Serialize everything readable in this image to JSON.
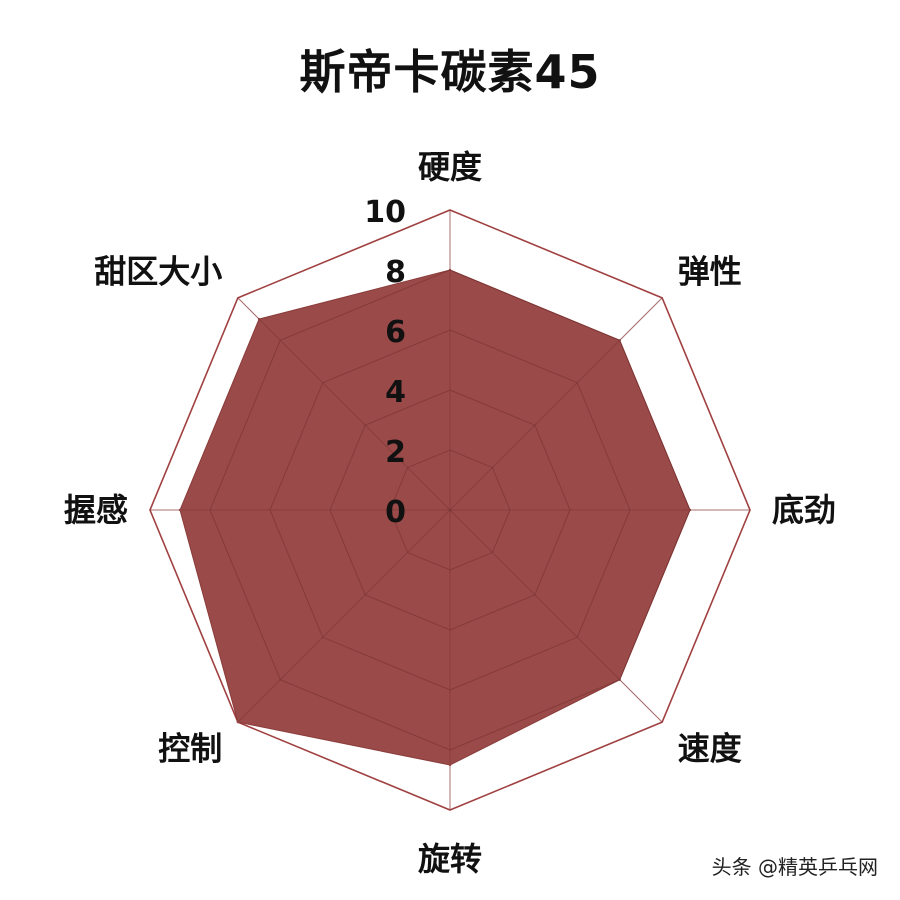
{
  "chart_data": {
    "type": "radar",
    "title": "斯帝卡碳素45",
    "axes": [
      "硬度",
      "弹性",
      "底劲",
      "速度",
      "旋转",
      "控制",
      "握感",
      "甜区大小"
    ],
    "series": [
      {
        "values": [
          8,
          8,
          8,
          8,
          8.5,
          10,
          9,
          9
        ]
      }
    ],
    "rlim": [
      0,
      10
    ],
    "radial_ticks": [
      "0",
      "2",
      "4",
      "6",
      "8",
      "10"
    ],
    "colors": {
      "fill": "#9a4a48",
      "fill_opacity": 1,
      "grid": "#6b2a2a",
      "outer_ring": "#a04040"
    }
  },
  "watermark": "头条 @精英乒乓网"
}
